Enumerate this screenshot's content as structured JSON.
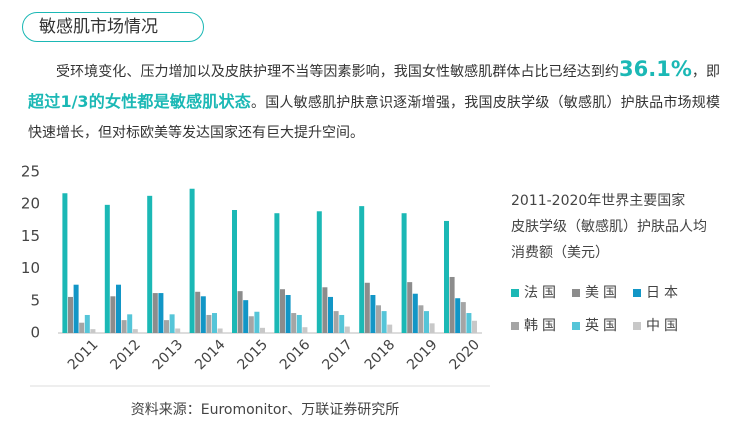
{
  "header": {
    "title": "敏感肌市场情况"
  },
  "paragraph": [
    "受环境变化、压力增加以及皮肤护理不当等因素影响，我国女性敏感肌群体占比已经达到约",
    "36.1%",
    "，即",
    "超过1/3的女性都是敏感肌状态",
    "。国人敏感肌护肤意识逐渐增强，我国皮肤学级（敏感肌）护肤品市场规模快速增长，但对标欧美等发达国家还有巨大提升空间。"
  ],
  "chart_data": {
    "type": "bar",
    "legend_title": [
      "2011-2020年世界主要国家",
      "皮肤学级（敏感肌）护肤品人均",
      "消费额（美元）"
    ],
    "categories": [
      "2011",
      "2012",
      "2013",
      "2014",
      "2015",
      "2016",
      "2017",
      "2018",
      "2019",
      "2020"
    ],
    "series": [
      {
        "name": "法国",
        "color": "#1bb8b5",
        "values": [
          21.7,
          19.9,
          21.3,
          22.4,
          19.1,
          18.6,
          18.9,
          19.7,
          18.6,
          17.4
        ]
      },
      {
        "name": "美国",
        "color": "#8c8c8c",
        "values": [
          5.6,
          5.7,
          6.2,
          6.4,
          6.5,
          6.8,
          7.1,
          7.8,
          7.9,
          8.7
        ]
      },
      {
        "name": "日本",
        "color": "#1296c6",
        "values": [
          7.5,
          7.5,
          6.2,
          5.7,
          5.1,
          5.9,
          5.6,
          5.9,
          6.1,
          5.4
        ]
      },
      {
        "name": "韩国",
        "color": "#a5a5a5",
        "values": [
          1.6,
          2.0,
          2.0,
          2.8,
          2.6,
          3.1,
          3.4,
          4.3,
          4.3,
          4.8
        ]
      },
      {
        "name": "英国",
        "color": "#55c5d8",
        "values": [
          2.8,
          2.9,
          2.9,
          3.1,
          3.3,
          2.8,
          2.8,
          3.4,
          3.4,
          3.1
        ]
      },
      {
        "name": "中国",
        "color": "#c8c8c8",
        "values": [
          0.6,
          0.6,
          0.7,
          0.7,
          0.8,
          0.9,
          1.0,
          1.3,
          1.5,
          1.9
        ]
      }
    ],
    "ylim": [
      0,
      25
    ],
    "yticks": [
      0,
      5,
      10,
      15,
      20,
      25
    ],
    "grid": false,
    "source": "资料来源：Euromonitor、万联证券研究所"
  }
}
